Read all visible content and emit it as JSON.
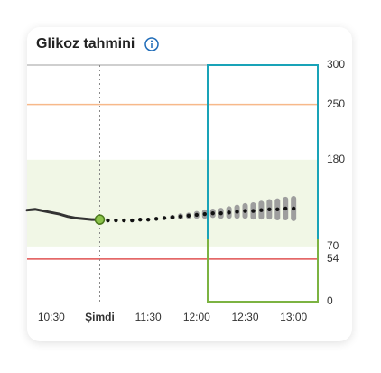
{
  "chart_data": {
    "type": "line",
    "title": "Glikoz tahmini",
    "xlim": [
      "10:15",
      "13:15"
    ],
    "xticks": [
      {
        "value": "10:30",
        "label": "10:30"
      },
      {
        "value": "11:00",
        "label": "Şimdi"
      },
      {
        "value": "11:30",
        "label": "11:30"
      },
      {
        "value": "12:00",
        "label": "12:00"
      },
      {
        "value": "12:30",
        "label": "12:30"
      },
      {
        "value": "13:00",
        "label": "13:00"
      }
    ],
    "ylim": [
      0,
      300
    ],
    "yticks": [
      0,
      54,
      70,
      180,
      250,
      300
    ],
    "target_range": [
      70,
      180
    ],
    "high_line": 250,
    "low_line": 54,
    "history": {
      "x": [
        "10:15",
        "10:20",
        "10:25",
        "10:30",
        "10:35",
        "10:40",
        "10:45",
        "10:50",
        "10:55",
        "11:00"
      ],
      "values": [
        116,
        117,
        115,
        113,
        111,
        108,
        106,
        105,
        104,
        104
      ],
      "color": "#333333"
    },
    "forecast": {
      "x": [
        "11:05",
        "11:10",
        "11:15",
        "11:20",
        "11:25",
        "11:30",
        "11:35",
        "11:40",
        "11:45",
        "11:50",
        "11:55",
        "12:00",
        "12:05",
        "12:10",
        "12:15",
        "12:20",
        "12:25",
        "12:30",
        "12:35",
        "12:40",
        "12:45",
        "12:50",
        "12:55",
        "13:00"
      ],
      "values": [
        103,
        103,
        103,
        103,
        104,
        104,
        105,
        106,
        107,
        108,
        109,
        110,
        111,
        112,
        112,
        113,
        114,
        115,
        115,
        116,
        117,
        117,
        118,
        118
      ],
      "low": [
        null,
        null,
        null,
        null,
        null,
        null,
        null,
        null,
        104,
        104,
        105,
        105,
        105,
        106,
        105,
        105,
        105,
        105,
        104,
        104,
        104,
        103,
        103,
        102
      ],
      "high": [
        null,
        null,
        null,
        null,
        null,
        null,
        null,
        null,
        110,
        112,
        113,
        115,
        117,
        118,
        119,
        121,
        123,
        125,
        126,
        128,
        130,
        131,
        133,
        134
      ],
      "color": "#111111",
      "range_color": "#9e9e9e"
    }
  }
}
